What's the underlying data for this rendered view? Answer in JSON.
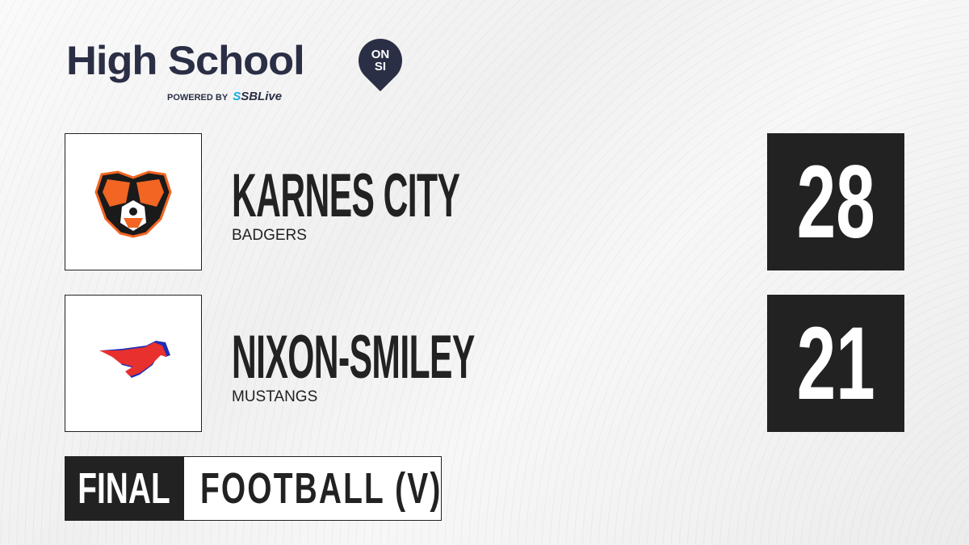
{
  "brand": {
    "title": "High School",
    "badge_top": "ON",
    "badge_bottom": "SI",
    "powered_by": "POWERED BY",
    "partner_prefix": "S",
    "partner": "SBLive",
    "colors": {
      "navy": "#2b2f45",
      "partner_blue": "#1aa9e0"
    }
  },
  "teams": [
    {
      "name": "KARNES CITY",
      "mascot": "BADGERS",
      "score": "28",
      "logo": "badger-logo",
      "logo_colors": [
        "#f26522",
        "#1a1a1a"
      ]
    },
    {
      "name": "NIXON-SMILEY",
      "mascot": "MUSTANGS",
      "score": "21",
      "logo": "mustang-logo",
      "logo_colors": [
        "#e8302e",
        "#1d2fb8"
      ]
    }
  ],
  "status": "FINAL",
  "sport": "FOOTBALL (V)"
}
